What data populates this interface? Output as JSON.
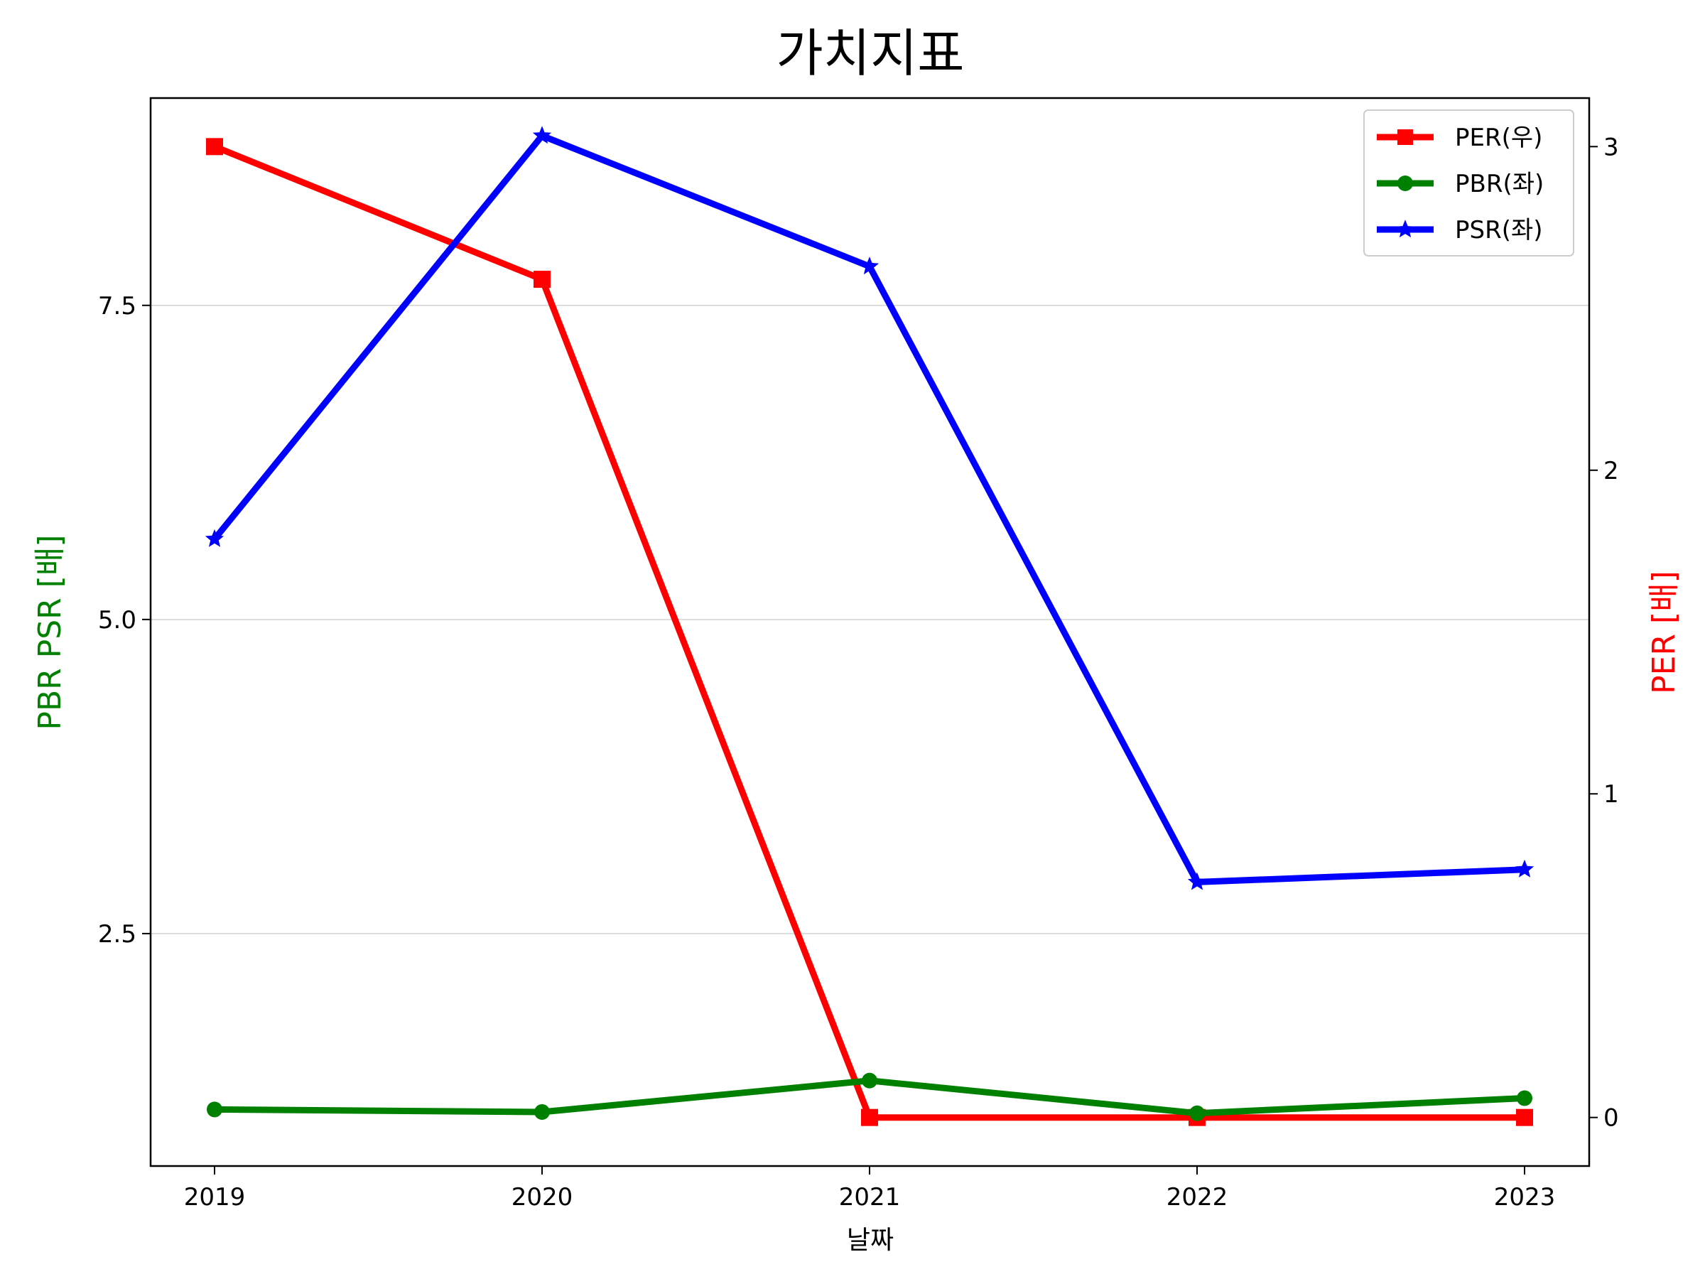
{
  "chart_data": {
    "type": "line",
    "title": "가치지표",
    "xlabel": "날짜",
    "ylabel_left": "PBR PSR [배]",
    "ylabel_right": "PER [배]",
    "categories": [
      "2019",
      "2020",
      "2021",
      "2022",
      "2023"
    ],
    "left_axis": {
      "ylim": [
        0.65,
        9.15
      ],
      "ticks": [
        2.5,
        5.0,
        7.5
      ],
      "tick_labels": [
        "2.5",
        "5.0",
        "7.5"
      ],
      "grid": true
    },
    "right_axis": {
      "ylim": [
        -0.15,
        3.15
      ],
      "ticks": [
        0,
        1,
        2,
        3
      ],
      "tick_labels": [
        "0",
        "1",
        "2",
        "3"
      ]
    },
    "series": [
      {
        "name": "PER(우)",
        "axis": "right",
        "color": "#ff0000",
        "marker": "square",
        "values": [
          3.0,
          2.59,
          0.0,
          0.0,
          0.0
        ]
      },
      {
        "name": "PBR(좌)",
        "axis": "left",
        "color": "#008000",
        "marker": "circle",
        "values": [
          1.1,
          1.08,
          1.33,
          1.07,
          1.19
        ]
      },
      {
        "name": "PSR(좌)",
        "axis": "left",
        "color": "#0000ff",
        "marker": "star",
        "values": [
          5.64,
          8.85,
          7.81,
          2.91,
          3.01
        ]
      }
    ],
    "legend_placement": "top-right",
    "colors": {
      "left_axis_label": "#008000",
      "right_axis_label": "#ff0000",
      "grid": "#d3d3d3"
    }
  }
}
